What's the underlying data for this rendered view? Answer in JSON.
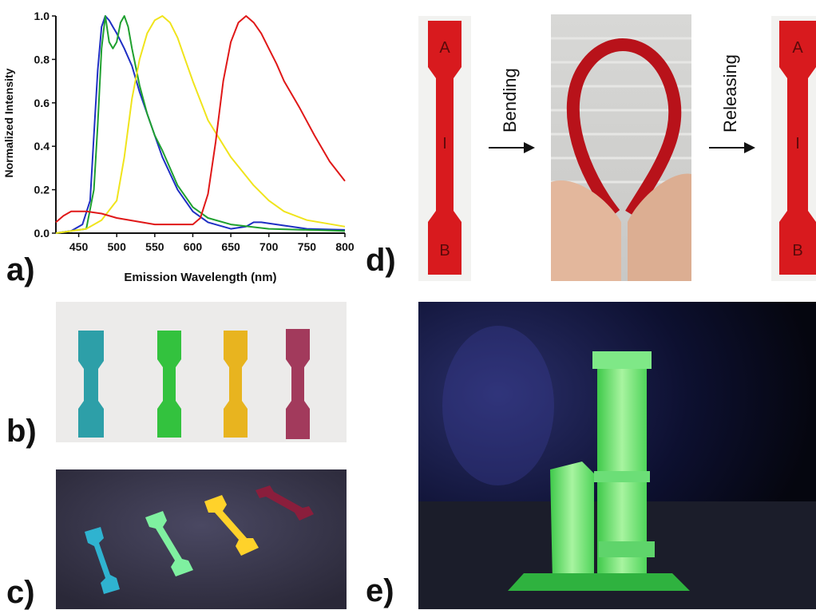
{
  "panels": {
    "a": "a)",
    "b": "b)",
    "c": "c)",
    "d": "d)",
    "e": "e)"
  },
  "sequence": {
    "bending_label": "Bending",
    "releasing_label": "Releasing",
    "specimen_marks": [
      "A",
      "I",
      "B"
    ]
  },
  "colors": {
    "blue": "#1f2fc4",
    "green": "#1fa02f",
    "yellow": "#f0e41c",
    "red": "#e01818"
  },
  "chart_data": {
    "type": "line",
    "title": "",
    "xlabel": "Emission Wavelength (nm)",
    "ylabel": "Normalized Intensity",
    "xlim": [
      420,
      800
    ],
    "ylim": [
      0,
      1.0
    ],
    "xticks": [
      "450",
      "500",
      "550",
      "600",
      "650",
      "700",
      "750",
      "800"
    ],
    "yticks": [
      "0.0",
      "0.2",
      "0.4",
      "0.6",
      "0.8",
      "1.0"
    ],
    "grid": false,
    "legend": "none",
    "series": [
      {
        "color": "blue",
        "x": [
          420,
          440,
          455,
          465,
          470,
          475,
          480,
          485,
          490,
          495,
          500,
          510,
          520,
          530,
          540,
          550,
          560,
          580,
          600,
          620,
          650,
          670,
          680,
          690,
          700,
          720,
          750,
          800
        ],
        "y": [
          0.0,
          0.01,
          0.04,
          0.15,
          0.45,
          0.75,
          0.95,
          1.0,
          0.98,
          0.95,
          0.92,
          0.85,
          0.77,
          0.65,
          0.55,
          0.45,
          0.35,
          0.2,
          0.1,
          0.05,
          0.02,
          0.03,
          0.05,
          0.05,
          0.045,
          0.035,
          0.02,
          0.015
        ]
      },
      {
        "color": "green",
        "x": [
          420,
          460,
          470,
          475,
          480,
          485,
          490,
          495,
          500,
          505,
          510,
          515,
          520,
          530,
          540,
          550,
          560,
          570,
          580,
          600,
          620,
          650,
          700,
          750,
          800
        ],
        "y": [
          0.0,
          0.02,
          0.2,
          0.5,
          0.85,
          1.0,
          0.88,
          0.85,
          0.88,
          0.97,
          1.0,
          0.95,
          0.85,
          0.68,
          0.55,
          0.45,
          0.38,
          0.3,
          0.22,
          0.12,
          0.07,
          0.04,
          0.02,
          0.015,
          0.01
        ]
      },
      {
        "color": "yellow",
        "x": [
          420,
          460,
          480,
          500,
          510,
          520,
          530,
          540,
          550,
          560,
          570,
          580,
          590,
          600,
          620,
          650,
          680,
          700,
          720,
          750,
          800
        ],
        "y": [
          0.0,
          0.02,
          0.06,
          0.15,
          0.35,
          0.62,
          0.8,
          0.92,
          0.98,
          1.0,
          0.97,
          0.9,
          0.8,
          0.7,
          0.52,
          0.35,
          0.22,
          0.15,
          0.1,
          0.06,
          0.03
        ]
      },
      {
        "color": "red",
        "x": [
          420,
          430,
          440,
          450,
          460,
          480,
          500,
          550,
          600,
          610,
          620,
          630,
          640,
          650,
          660,
          670,
          680,
          690,
          700,
          710,
          720,
          740,
          760,
          780,
          800
        ],
        "y": [
          0.05,
          0.08,
          0.1,
          0.1,
          0.1,
          0.09,
          0.07,
          0.04,
          0.04,
          0.07,
          0.18,
          0.42,
          0.7,
          0.88,
          0.97,
          1.0,
          0.97,
          0.92,
          0.85,
          0.78,
          0.7,
          0.58,
          0.45,
          0.33,
          0.24
        ]
      }
    ]
  }
}
